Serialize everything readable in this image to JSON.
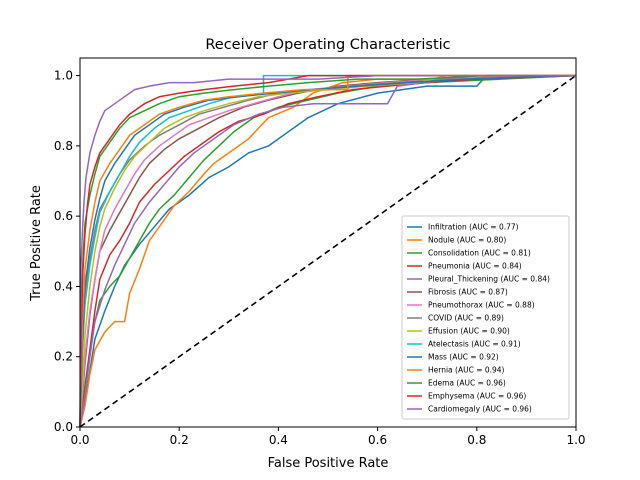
{
  "chart_data": {
    "type": "line",
    "title": "Receiver Operating Characteristic",
    "xlabel": "False Positive Rate",
    "ylabel": "True Positive Rate",
    "xlim": [
      0,
      1
    ],
    "ylim": [
      0,
      1.05
    ],
    "x_ticks": [
      "0.0",
      "0.2",
      "0.4",
      "0.6",
      "0.8",
      "1.0"
    ],
    "y_ticks": [
      "0.0",
      "0.2",
      "0.4",
      "0.6",
      "0.8",
      "1.0"
    ],
    "grid": false,
    "legend_position": "lower right",
    "diagonal": {
      "x": [
        0,
        1
      ],
      "y": [
        0,
        1
      ],
      "color": "#000000",
      "style": "dashed"
    },
    "series": [
      {
        "name": "Infiltration (AUC = 0.77)",
        "color": "#1f77b4",
        "x": [
          0,
          0.01,
          0.02,
          0.03,
          0.05,
          0.07,
          0.09,
          0.12,
          0.15,
          0.18,
          0.22,
          0.26,
          0.3,
          0.34,
          0.38,
          0.42,
          0.46,
          0.52,
          0.6,
          0.7,
          0.8,
          0.82,
          1.0
        ],
        "y": [
          0,
          0.07,
          0.16,
          0.25,
          0.33,
          0.4,
          0.46,
          0.52,
          0.57,
          0.62,
          0.66,
          0.71,
          0.74,
          0.78,
          0.8,
          0.84,
          0.88,
          0.92,
          0.95,
          0.97,
          0.97,
          1.0,
          1.0
        ]
      },
      {
        "name": "Nodule (AUC = 0.80)",
        "color": "#ff7f0e",
        "x": [
          0,
          0.01,
          0.02,
          0.03,
          0.05,
          0.07,
          0.09,
          0.1,
          0.12,
          0.14,
          0.16,
          0.19,
          0.22,
          0.25,
          0.27,
          0.3,
          0.34,
          0.38,
          0.43,
          0.47,
          0.53,
          0.6,
          0.7,
          0.78,
          0.84,
          1.0
        ],
        "y": [
          0,
          0.06,
          0.15,
          0.22,
          0.27,
          0.3,
          0.3,
          0.38,
          0.45,
          0.53,
          0.57,
          0.63,
          0.67,
          0.72,
          0.75,
          0.78,
          0.82,
          0.88,
          0.91,
          0.95,
          0.98,
          0.99,
          0.99,
          0.99,
          1.0,
          1.0
        ]
      },
      {
        "name": "Consolidation (AUC = 0.81)",
        "color": "#2ca02c",
        "x": [
          0,
          0.01,
          0.02,
          0.03,
          0.04,
          0.06,
          0.08,
          0.1,
          0.12,
          0.14,
          0.16,
          0.19,
          0.22,
          0.25,
          0.28,
          0.31,
          0.35,
          0.4,
          0.46,
          0.52,
          0.6,
          0.7,
          1.0
        ],
        "y": [
          0,
          0.12,
          0.22,
          0.3,
          0.36,
          0.4,
          0.43,
          0.48,
          0.53,
          0.58,
          0.62,
          0.66,
          0.71,
          0.76,
          0.8,
          0.84,
          0.88,
          0.91,
          0.93,
          0.95,
          0.97,
          0.98,
          1.0
        ]
      },
      {
        "name": "Pneumonia (AUC = 0.84)",
        "color": "#d62728",
        "x": [
          0,
          0.01,
          0.02,
          0.03,
          0.04,
          0.06,
          0.08,
          0.1,
          0.12,
          0.15,
          0.18,
          0.21,
          0.24,
          0.28,
          0.32,
          0.37,
          0.42,
          0.48,
          0.55,
          0.62,
          0.7,
          0.8,
          1.0
        ],
        "y": [
          0,
          0.1,
          0.22,
          0.33,
          0.42,
          0.49,
          0.53,
          0.58,
          0.64,
          0.69,
          0.73,
          0.77,
          0.8,
          0.84,
          0.87,
          0.89,
          0.92,
          0.94,
          0.96,
          0.97,
          0.98,
          0.99,
          1.0
        ]
      },
      {
        "name": "Pleural_Thickening (AUC = 0.84)",
        "color": "#9467bd",
        "x": [
          0,
          0.01,
          0.02,
          0.03,
          0.05,
          0.07,
          0.09,
          0.11,
          0.14,
          0.17,
          0.2,
          0.23,
          0.27,
          0.31,
          0.36,
          0.41,
          0.47,
          0.54,
          0.62,
          0.64,
          0.75,
          1.0
        ],
        "y": [
          0,
          0.09,
          0.2,
          0.3,
          0.39,
          0.46,
          0.52,
          0.58,
          0.64,
          0.69,
          0.74,
          0.78,
          0.82,
          0.86,
          0.89,
          0.91,
          0.92,
          0.92,
          0.92,
          0.97,
          0.99,
          1.0
        ]
      },
      {
        "name": "Fibrosis (AUC = 0.87)",
        "color": "#8c564b",
        "x": [
          0,
          0.01,
          0.02,
          0.03,
          0.04,
          0.06,
          0.08,
          0.1,
          0.12,
          0.14,
          0.17,
          0.2,
          0.24,
          0.28,
          0.33,
          0.38,
          0.44,
          0.52,
          0.6,
          0.7,
          1.0
        ],
        "y": [
          0,
          0.18,
          0.32,
          0.42,
          0.5,
          0.56,
          0.61,
          0.66,
          0.71,
          0.75,
          0.79,
          0.82,
          0.85,
          0.88,
          0.91,
          0.93,
          0.95,
          0.97,
          0.98,
          0.99,
          1.0
        ]
      },
      {
        "name": "Pneumothorax (AUC = 0.88)",
        "color": "#e377c2",
        "x": [
          0,
          0.01,
          0.02,
          0.03,
          0.04,
          0.05,
          0.07,
          0.09,
          0.11,
          0.13,
          0.16,
          0.19,
          0.22,
          0.26,
          0.3,
          0.35,
          0.4,
          0.46,
          0.54,
          0.62,
          0.72,
          1.0
        ],
        "y": [
          0,
          0.2,
          0.33,
          0.42,
          0.5,
          0.56,
          0.62,
          0.67,
          0.72,
          0.76,
          0.8,
          0.83,
          0.86,
          0.88,
          0.9,
          0.92,
          0.94,
          0.96,
          0.97,
          0.98,
          0.99,
          1.0
        ]
      },
      {
        "name": "COVID (AUC = 0.89)",
        "color": "#7f7f7f",
        "x": [
          0,
          0.005,
          0.01,
          0.02,
          0.03,
          0.04,
          0.06,
          0.08,
          0.1,
          0.13,
          0.16,
          0.2,
          0.24,
          0.29,
          0.34,
          0.4,
          0.47,
          0.55,
          0.64,
          0.75,
          1.0
        ],
        "y": [
          0,
          0.25,
          0.38,
          0.48,
          0.56,
          0.62,
          0.67,
          0.72,
          0.76,
          0.8,
          0.83,
          0.86,
          0.89,
          0.91,
          0.93,
          0.95,
          0.96,
          0.97,
          0.98,
          0.99,
          1.0
        ]
      },
      {
        "name": "Effusion (AUC = 0.90)",
        "color": "#bcbd22",
        "x": [
          0,
          0.01,
          0.02,
          0.03,
          0.04,
          0.05,
          0.07,
          0.09,
          0.11,
          0.14,
          0.17,
          0.21,
          0.25,
          0.3,
          0.36,
          0.42,
          0.5,
          0.58,
          0.68,
          0.74,
          1.0
        ],
        "y": [
          0,
          0.26,
          0.4,
          0.5,
          0.57,
          0.62,
          0.68,
          0.73,
          0.77,
          0.81,
          0.85,
          0.88,
          0.9,
          0.92,
          0.94,
          0.95,
          0.96,
          0.97,
          0.98,
          1.0,
          1.0
        ]
      },
      {
        "name": "Atelectasis (AUC = 0.91)",
        "color": "#17becf",
        "x": [
          0,
          0.005,
          0.01,
          0.02,
          0.03,
          0.04,
          0.06,
          0.08,
          0.1,
          0.12,
          0.15,
          0.18,
          0.22,
          0.26,
          0.31,
          0.37,
          0.37,
          0.44,
          0.52,
          0.62,
          0.75,
          1.0
        ],
        "y": [
          0,
          0.22,
          0.35,
          0.46,
          0.54,
          0.61,
          0.67,
          0.72,
          0.77,
          0.81,
          0.85,
          0.88,
          0.9,
          0.92,
          0.94,
          0.95,
          1.0,
          1.0,
          1.0,
          1.0,
          1.0,
          1.0
        ]
      },
      {
        "name": "Mass (AUC = 0.92)",
        "color": "#1f77b4",
        "x": [
          0,
          0.005,
          0.01,
          0.02,
          0.03,
          0.04,
          0.05,
          0.07,
          0.09,
          0.11,
          0.14,
          0.17,
          0.21,
          0.26,
          0.32,
          0.39,
          0.47,
          0.56,
          0.66,
          0.78,
          1.0
        ],
        "y": [
          0,
          0.25,
          0.4,
          0.51,
          0.59,
          0.65,
          0.7,
          0.75,
          0.79,
          0.83,
          0.86,
          0.89,
          0.91,
          0.93,
          0.94,
          0.95,
          0.96,
          0.97,
          0.98,
          0.99,
          1.0
        ]
      },
      {
        "name": "Hernia (AUC = 0.94)",
        "color": "#ff7f0e",
        "x": [
          0,
          0.005,
          0.01,
          0.02,
          0.03,
          0.04,
          0.06,
          0.08,
          0.1,
          0.13,
          0.16,
          0.2,
          0.25,
          0.3,
          0.37,
          0.45,
          0.54,
          0.54,
          0.65,
          0.8,
          1.0
        ],
        "y": [
          0,
          0.3,
          0.45,
          0.56,
          0.64,
          0.7,
          0.75,
          0.79,
          0.83,
          0.86,
          0.89,
          0.91,
          0.93,
          0.94,
          0.95,
          0.96,
          0.96,
          1.0,
          1.0,
          1.0,
          1.0
        ]
      },
      {
        "name": "Edema (AUC = 0.96)",
        "color": "#2ca02c",
        "x": [
          0,
          0.003,
          0.006,
          0.01,
          0.02,
          0.03,
          0.04,
          0.06,
          0.08,
          0.1,
          0.13,
          0.16,
          0.2,
          0.25,
          0.31,
          0.38,
          0.46,
          0.56,
          0.68,
          0.82,
          1.0
        ],
        "y": [
          0,
          0.35,
          0.48,
          0.58,
          0.66,
          0.72,
          0.77,
          0.81,
          0.85,
          0.88,
          0.9,
          0.92,
          0.94,
          0.95,
          0.96,
          0.97,
          0.98,
          0.99,
          0.99,
          1.0,
          1.0
        ]
      },
      {
        "name": "Emphysema (AUC = 0.96)",
        "color": "#d62728",
        "x": [
          0,
          0.003,
          0.006,
          0.01,
          0.015,
          0.02,
          0.03,
          0.04,
          0.06,
          0.08,
          0.1,
          0.13,
          0.16,
          0.2,
          0.25,
          0.31,
          0.38,
          0.46,
          0.55,
          0.66,
          0.8,
          1.0
        ],
        "y": [
          0,
          0.3,
          0.45,
          0.55,
          0.63,
          0.69,
          0.74,
          0.78,
          0.82,
          0.86,
          0.89,
          0.92,
          0.94,
          0.95,
          0.96,
          0.97,
          0.98,
          1.0,
          1.0,
          1.0,
          1.0,
          1.0
        ]
      },
      {
        "name": "Cardiomegaly (AUC = 0.96)",
        "color": "#9467bd",
        "x": [
          0,
          0.002,
          0.005,
          0.008,
          0.012,
          0.02,
          0.03,
          0.04,
          0.05,
          0.07,
          0.09,
          0.11,
          0.14,
          0.18,
          0.23,
          0.3,
          0.38,
          0.48,
          0.6,
          0.75,
          1.0
        ],
        "y": [
          0,
          0.46,
          0.56,
          0.64,
          0.71,
          0.78,
          0.83,
          0.87,
          0.9,
          0.92,
          0.94,
          0.96,
          0.97,
          0.98,
          0.98,
          0.99,
          0.99,
          0.99,
          1.0,
          1.0,
          1.0
        ]
      }
    ]
  }
}
